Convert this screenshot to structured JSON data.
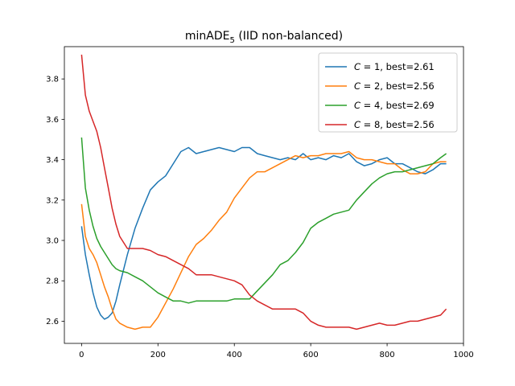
{
  "chart_data": {
    "type": "line",
    "title": "minADE",
    "title_sub": "5",
    "title_suffix": " (IID non-balanced)",
    "xlabel": "",
    "ylabel": "",
    "xlim": [
      -45,
      1000
    ],
    "ylim": [
      2.49,
      3.96
    ],
    "xticks": [
      0,
      200,
      400,
      600,
      800,
      1000
    ],
    "yticks": [
      2.6,
      2.8,
      3.0,
      3.2,
      3.4,
      3.6,
      3.8
    ],
    "legend_position": "top-right",
    "grid": false,
    "series": [
      {
        "name_var": "C",
        "name_rest": " = 1, best=2.61",
        "color": "#1f77b4",
        "x": [
          0,
          10,
          20,
          30,
          40,
          50,
          60,
          70,
          80,
          90,
          100,
          120,
          140,
          160,
          180,
          200,
          220,
          240,
          260,
          280,
          300,
          320,
          340,
          360,
          380,
          400,
          420,
          440,
          460,
          480,
          500,
          520,
          540,
          560,
          580,
          600,
          620,
          640,
          660,
          680,
          700,
          720,
          740,
          760,
          780,
          800,
          820,
          840,
          860,
          880,
          900,
          920,
          940,
          955
        ],
        "y": [
          3.07,
          2.93,
          2.83,
          2.74,
          2.67,
          2.63,
          2.61,
          2.62,
          2.64,
          2.7,
          2.78,
          2.93,
          3.06,
          3.16,
          3.25,
          3.29,
          3.32,
          3.38,
          3.44,
          3.46,
          3.43,
          3.44,
          3.45,
          3.46,
          3.45,
          3.44,
          3.46,
          3.46,
          3.43,
          3.42,
          3.41,
          3.4,
          3.41,
          3.4,
          3.43,
          3.4,
          3.41,
          3.4,
          3.42,
          3.41,
          3.43,
          3.39,
          3.37,
          3.38,
          3.4,
          3.41,
          3.38,
          3.38,
          3.36,
          3.34,
          3.33,
          3.35,
          3.38,
          3.38
        ]
      },
      {
        "name_var": "C",
        "name_rest": " = 2, best=2.56",
        "color": "#ff7f0e",
        "x": [
          0,
          10,
          20,
          30,
          40,
          50,
          60,
          70,
          80,
          90,
          100,
          120,
          140,
          160,
          180,
          200,
          220,
          240,
          260,
          280,
          300,
          320,
          340,
          360,
          380,
          400,
          420,
          440,
          460,
          480,
          500,
          520,
          540,
          560,
          580,
          600,
          620,
          640,
          660,
          680,
          700,
          720,
          740,
          760,
          780,
          800,
          820,
          840,
          860,
          880,
          900,
          920,
          940,
          955
        ],
        "y": [
          3.18,
          3.02,
          2.96,
          2.93,
          2.89,
          2.83,
          2.77,
          2.72,
          2.66,
          2.61,
          2.59,
          2.57,
          2.56,
          2.57,
          2.57,
          2.62,
          2.69,
          2.76,
          2.84,
          2.92,
          2.98,
          3.01,
          3.05,
          3.1,
          3.14,
          3.21,
          3.26,
          3.31,
          3.34,
          3.34,
          3.36,
          3.38,
          3.4,
          3.42,
          3.41,
          3.42,
          3.42,
          3.43,
          3.43,
          3.43,
          3.44,
          3.41,
          3.4,
          3.4,
          3.39,
          3.38,
          3.38,
          3.35,
          3.33,
          3.33,
          3.34,
          3.38,
          3.39,
          3.39
        ]
      },
      {
        "name_var": "C",
        "name_rest": " = 4, best=2.69",
        "color": "#2ca02c",
        "x": [
          0,
          10,
          20,
          30,
          40,
          50,
          60,
          70,
          80,
          90,
          100,
          120,
          140,
          160,
          180,
          200,
          220,
          240,
          260,
          280,
          300,
          320,
          340,
          360,
          380,
          400,
          420,
          440,
          460,
          480,
          500,
          520,
          540,
          560,
          580,
          600,
          620,
          640,
          660,
          680,
          700,
          720,
          740,
          760,
          780,
          800,
          820,
          840,
          860,
          880,
          900,
          920,
          940,
          955
        ],
        "y": [
          3.51,
          3.26,
          3.15,
          3.07,
          3.01,
          2.97,
          2.94,
          2.91,
          2.88,
          2.86,
          2.85,
          2.84,
          2.82,
          2.8,
          2.77,
          2.74,
          2.72,
          2.7,
          2.7,
          2.69,
          2.7,
          2.7,
          2.7,
          2.7,
          2.7,
          2.71,
          2.71,
          2.71,
          2.75,
          2.79,
          2.83,
          2.88,
          2.9,
          2.94,
          2.99,
          3.06,
          3.09,
          3.11,
          3.13,
          3.14,
          3.15,
          3.2,
          3.24,
          3.28,
          3.31,
          3.33,
          3.34,
          3.34,
          3.35,
          3.36,
          3.37,
          3.38,
          3.41,
          3.43
        ]
      },
      {
        "name_var": "C",
        "name_rest": " = 8, best=2.56",
        "color": "#d62728",
        "x": [
          0,
          10,
          20,
          30,
          40,
          50,
          60,
          70,
          80,
          90,
          100,
          120,
          140,
          160,
          180,
          200,
          220,
          240,
          260,
          280,
          300,
          320,
          340,
          360,
          380,
          400,
          420,
          440,
          460,
          480,
          500,
          520,
          540,
          560,
          580,
          600,
          620,
          640,
          660,
          680,
          700,
          720,
          740,
          760,
          780,
          800,
          820,
          840,
          860,
          880,
          900,
          920,
          940,
          955
        ],
        "y": [
          3.92,
          3.72,
          3.64,
          3.59,
          3.54,
          3.46,
          3.36,
          3.26,
          3.16,
          3.08,
          3.02,
          2.96,
          2.96,
          2.96,
          2.95,
          2.93,
          2.92,
          2.9,
          2.88,
          2.86,
          2.83,
          2.83,
          2.83,
          2.82,
          2.81,
          2.8,
          2.78,
          2.73,
          2.7,
          2.68,
          2.66,
          2.66,
          2.66,
          2.66,
          2.64,
          2.6,
          2.58,
          2.57,
          2.57,
          2.57,
          2.57,
          2.56,
          2.57,
          2.58,
          2.59,
          2.58,
          2.58,
          2.59,
          2.6,
          2.6,
          2.61,
          2.62,
          2.63,
          2.66
        ]
      }
    ]
  }
}
